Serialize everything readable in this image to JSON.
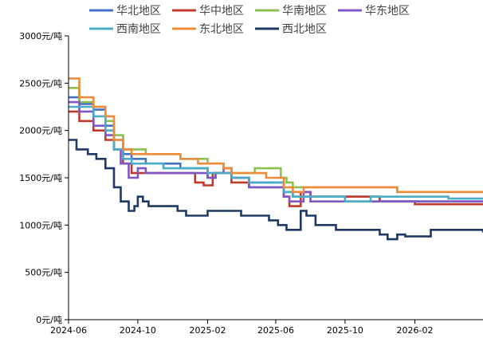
{
  "chart_data": {
    "type": "line",
    "title": "",
    "xlabel": "",
    "ylabel": "",
    "ylim": [
      0,
      3000
    ],
    "yticks": [
      0,
      500,
      1000,
      1500,
      2000,
      2500,
      3000
    ],
    "ytick_labels": [
      "0元/吨",
      "500元/吨",
      "1000元/吨",
      "1500元/吨",
      "2000元/吨",
      "2500元/吨",
      "3000元/吨"
    ],
    "xlim": [
      "2024-06",
      "2026-06"
    ],
    "xtick_labels": [
      "2024-06",
      "2024-10",
      "2025-02",
      "2025-06",
      "2025-10",
      "2026-02"
    ],
    "grid": false,
    "legend_position": "top",
    "series": [
      {
        "name": "华北地区",
        "color": "#4472C4",
        "points": [
          [
            "2024-06-01",
            2350
          ],
          [
            "2024-06-20",
            2280
          ],
          [
            "2024-07-15",
            2220
          ],
          [
            "2024-08-05",
            2050
          ],
          [
            "2024-08-20",
            1900
          ],
          [
            "2024-09-05",
            1750
          ],
          [
            "2024-09-20",
            1700
          ],
          [
            "2024-10-15",
            1650
          ],
          [
            "2024-11-15",
            1650
          ],
          [
            "2024-12-15",
            1600
          ],
          [
            "2025-01-15",
            1600
          ],
          [
            "2025-02-01",
            1500
          ],
          [
            "2025-02-15",
            1550
          ],
          [
            "2025-03-01",
            1550
          ],
          [
            "2025-03-15",
            1500
          ],
          [
            "2025-04-15",
            1450
          ],
          [
            "2025-05-15",
            1450
          ],
          [
            "2025-06-15",
            1350
          ],
          [
            "2025-07-01",
            1300
          ],
          [
            "2025-07-15",
            1300
          ],
          [
            "2025-08-01",
            1300
          ],
          [
            "2025-09-15",
            1300
          ],
          [
            "2025-10-15",
            1300
          ],
          [
            "2025-12-01",
            1250
          ],
          [
            "2026-02-01",
            1250
          ],
          [
            "2026-04-01",
            1250
          ],
          [
            "2026-06-01",
            1250
          ]
        ]
      },
      {
        "name": "华中地区",
        "color": "#C0392B",
        "points": [
          [
            "2024-06-01",
            2200
          ],
          [
            "2024-06-20",
            2100
          ],
          [
            "2024-07-15",
            2000
          ],
          [
            "2024-08-05",
            1900
          ],
          [
            "2024-08-20",
            1800
          ],
          [
            "2024-09-05",
            1650
          ],
          [
            "2024-09-20",
            1550
          ],
          [
            "2024-10-15",
            1550
          ],
          [
            "2024-11-15",
            1550
          ],
          [
            "2024-12-15",
            1550
          ],
          [
            "2025-01-10",
            1450
          ],
          [
            "2025-01-25",
            1420
          ],
          [
            "2025-02-10",
            1550
          ],
          [
            "2025-03-01",
            1550
          ],
          [
            "2025-03-15",
            1450
          ],
          [
            "2025-04-15",
            1400
          ],
          [
            "2025-05-15",
            1400
          ],
          [
            "2025-06-15",
            1300
          ],
          [
            "2025-06-25",
            1200
          ],
          [
            "2025-07-10",
            1200
          ],
          [
            "2025-07-15",
            1350
          ],
          [
            "2025-08-01",
            1300
          ],
          [
            "2025-09-15",
            1300
          ],
          [
            "2025-10-15",
            1300
          ],
          [
            "2025-12-01",
            1250
          ],
          [
            "2026-02-01",
            1220
          ],
          [
            "2026-04-01",
            1220
          ],
          [
            "2026-06-01",
            1220
          ]
        ]
      },
      {
        "name": "华南地区",
        "color": "#8CC152",
        "points": [
          [
            "2024-06-01",
            2450
          ],
          [
            "2024-06-20",
            2300
          ],
          [
            "2024-07-15",
            2250
          ],
          [
            "2024-08-05",
            2100
          ],
          [
            "2024-08-20",
            1950
          ],
          [
            "2024-09-05",
            1800
          ],
          [
            "2024-09-20",
            1800
          ],
          [
            "2024-10-15",
            1750
          ],
          [
            "2024-11-15",
            1750
          ],
          [
            "2024-12-15",
            1700
          ],
          [
            "2025-01-15",
            1700
          ],
          [
            "2025-02-01",
            1650
          ],
          [
            "2025-03-01",
            1600
          ],
          [
            "2025-03-15",
            1550
          ],
          [
            "2025-04-15",
            1550
          ],
          [
            "2025-04-25",
            1600
          ],
          [
            "2025-05-25",
            1600
          ],
          [
            "2025-06-10",
            1500
          ],
          [
            "2025-06-20",
            1450
          ],
          [
            "2025-07-01",
            1400
          ],
          [
            "2025-07-15",
            1400
          ],
          [
            "2025-08-01",
            1400
          ],
          [
            "2025-09-15",
            1400
          ],
          [
            "2025-10-15",
            1400
          ],
          [
            "2025-12-15",
            1400
          ],
          [
            "2026-01-01",
            1350
          ],
          [
            "2026-02-01",
            1350
          ],
          [
            "2026-04-01",
            1350
          ],
          [
            "2026-06-01",
            1350
          ]
        ]
      },
      {
        "name": "华东地区",
        "color": "#7E57C2",
        "points": [
          [
            "2024-06-01",
            2300
          ],
          [
            "2024-06-20",
            2200
          ],
          [
            "2024-07-15",
            2050
          ],
          [
            "2024-08-05",
            1950
          ],
          [
            "2024-08-20",
            1800
          ],
          [
            "2024-09-01",
            1650
          ],
          [
            "2024-09-15",
            1500
          ],
          [
            "2024-10-01",
            1600
          ],
          [
            "2024-10-15",
            1550
          ],
          [
            "2024-11-15",
            1550
          ],
          [
            "2024-12-15",
            1550
          ],
          [
            "2025-01-15",
            1550
          ],
          [
            "2025-02-01",
            1500
          ],
          [
            "2025-02-15",
            1550
          ],
          [
            "2025-03-01",
            1600
          ],
          [
            "2025-03-15",
            1500
          ],
          [
            "2025-04-15",
            1400
          ],
          [
            "2025-05-15",
            1400
          ],
          [
            "2025-06-15",
            1300
          ],
          [
            "2025-06-25",
            1250
          ],
          [
            "2025-07-10",
            1250
          ],
          [
            "2025-07-20",
            1350
          ],
          [
            "2025-08-01",
            1250
          ],
          [
            "2025-09-15",
            1250
          ],
          [
            "2025-10-15",
            1250
          ],
          [
            "2025-12-01",
            1250
          ],
          [
            "2026-02-01",
            1250
          ],
          [
            "2026-04-01",
            1250
          ],
          [
            "2026-06-01",
            1250
          ]
        ]
      },
      {
        "name": "西南地区",
        "color": "#4BACC6",
        "points": [
          [
            "2024-06-01",
            2250
          ],
          [
            "2024-06-20",
            2250
          ],
          [
            "2024-07-15",
            2150
          ],
          [
            "2024-08-05",
            2000
          ],
          [
            "2024-08-20",
            1800
          ],
          [
            "2024-09-05",
            1700
          ],
          [
            "2024-09-20",
            1650
          ],
          [
            "2024-10-15",
            1650
          ],
          [
            "2024-11-15",
            1600
          ],
          [
            "2024-12-15",
            1600
          ],
          [
            "2025-01-15",
            1600
          ],
          [
            "2025-02-01",
            1550
          ],
          [
            "2025-03-01",
            1550
          ],
          [
            "2025-03-15",
            1500
          ],
          [
            "2025-04-15",
            1450
          ],
          [
            "2025-05-15",
            1450
          ],
          [
            "2025-06-15",
            1350
          ],
          [
            "2025-07-01",
            1300
          ],
          [
            "2025-07-20",
            1300
          ],
          [
            "2025-08-01",
            1300
          ],
          [
            "2025-09-15",
            1300
          ],
          [
            "2025-10-01",
            1250
          ],
          [
            "2025-11-15",
            1300
          ],
          [
            "2026-02-01",
            1300
          ],
          [
            "2026-04-01",
            1280
          ],
          [
            "2026-05-15",
            1280
          ],
          [
            "2026-06-01",
            1280
          ]
        ]
      },
      {
        "name": "东北地区",
        "color": "#ED8B3A",
        "points": [
          [
            "2024-06-01",
            2550
          ],
          [
            "2024-06-20",
            2350
          ],
          [
            "2024-07-15",
            2250
          ],
          [
            "2024-08-05",
            2150
          ],
          [
            "2024-08-20",
            1900
          ],
          [
            "2024-09-05",
            1800
          ],
          [
            "2024-09-20",
            1750
          ],
          [
            "2024-10-15",
            1750
          ],
          [
            "2024-11-15",
            1750
          ],
          [
            "2024-12-15",
            1700
          ],
          [
            "2025-01-15",
            1650
          ],
          [
            "2025-02-01",
            1650
          ],
          [
            "2025-03-01",
            1600
          ],
          [
            "2025-03-15",
            1550
          ],
          [
            "2025-04-15",
            1550
          ],
          [
            "2025-05-15",
            1500
          ],
          [
            "2025-06-15",
            1400
          ],
          [
            "2025-07-01",
            1350
          ],
          [
            "2025-07-20",
            1400
          ],
          [
            "2025-08-01",
            1400
          ],
          [
            "2025-09-15",
            1400
          ],
          [
            "2025-10-15",
            1400
          ],
          [
            "2025-12-15",
            1400
          ],
          [
            "2026-01-01",
            1350
          ],
          [
            "2026-02-01",
            1350
          ],
          [
            "2026-04-01",
            1350
          ],
          [
            "2026-06-01",
            1350
          ]
        ]
      },
      {
        "name": "西北地区",
        "color": "#1F3864",
        "points": [
          [
            "2024-06-01",
            1900
          ],
          [
            "2024-06-15",
            1800
          ],
          [
            "2024-07-05",
            1750
          ],
          [
            "2024-07-20",
            1700
          ],
          [
            "2024-08-05",
            1600
          ],
          [
            "2024-08-20",
            1400
          ],
          [
            "2024-09-01",
            1250
          ],
          [
            "2024-09-15",
            1150
          ],
          [
            "2024-09-25",
            1200
          ],
          [
            "2024-10-01",
            1300
          ],
          [
            "2024-10-10",
            1250
          ],
          [
            "2024-10-20",
            1200
          ],
          [
            "2024-11-15",
            1200
          ],
          [
            "2024-12-10",
            1150
          ],
          [
            "2024-12-25",
            1100
          ],
          [
            "2025-01-15",
            1100
          ],
          [
            "2025-02-01",
            1150
          ],
          [
            "2025-02-15",
            1150
          ],
          [
            "2025-03-15",
            1150
          ],
          [
            "2025-04-01",
            1100
          ],
          [
            "2025-05-01",
            1100
          ],
          [
            "2025-05-20",
            1050
          ],
          [
            "2025-06-05",
            1000
          ],
          [
            "2025-06-20",
            950
          ],
          [
            "2025-07-05",
            950
          ],
          [
            "2025-07-15",
            1150
          ],
          [
            "2025-07-25",
            1100
          ],
          [
            "2025-08-10",
            1000
          ],
          [
            "2025-09-15",
            950
          ],
          [
            "2025-11-01",
            950
          ],
          [
            "2025-12-01",
            900
          ],
          [
            "2025-12-15",
            850
          ],
          [
            "2026-01-01",
            900
          ],
          [
            "2026-01-15",
            880
          ],
          [
            "2026-02-15",
            880
          ],
          [
            "2026-03-01",
            950
          ],
          [
            "2026-04-01",
            950
          ],
          [
            "2026-05-01",
            950
          ],
          [
            "2026-06-01",
            920
          ]
        ]
      }
    ]
  }
}
